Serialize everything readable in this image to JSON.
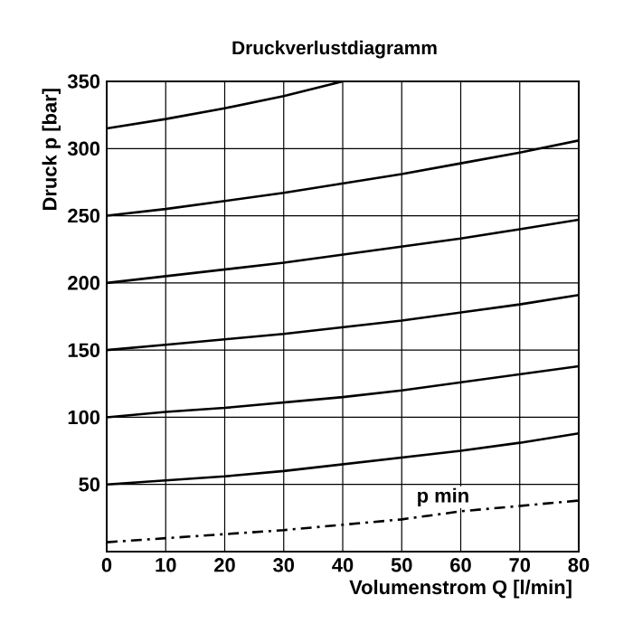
{
  "chart_data": {
    "type": "line",
    "title": "Druckverlustdiagramm",
    "xlabel": "Volumenstrom Q [l/min]",
    "ylabel": "Druck p [bar]",
    "xlim": [
      0,
      80
    ],
    "ylim": [
      0,
      350
    ],
    "xticks": [
      0,
      10,
      20,
      30,
      40,
      50,
      60,
      70,
      80
    ],
    "yticks": [
      {
        "value": 0,
        "label": null
      },
      50,
      100,
      150,
      200,
      250,
      300,
      350
    ],
    "grid": true,
    "marker": "none",
    "annotations": [
      {
        "text": "p min",
        "x": 57,
        "y": 32
      }
    ],
    "series": [
      {
        "color": "#000000",
        "line_style": "solid",
        "x": [
          0,
          10,
          20,
          30,
          40,
          50,
          60,
          70,
          80
        ],
        "values": [
          50,
          53,
          56,
          60,
          65,
          70,
          75,
          81,
          88
        ]
      },
      {
        "color": "#000000",
        "line_style": "solid",
        "x": [
          0,
          10,
          20,
          30,
          40,
          50,
          60,
          70,
          80
        ],
        "values": [
          100,
          104,
          107,
          111,
          115,
          120,
          126,
          132,
          138
        ]
      },
      {
        "color": "#000000",
        "line_style": "solid",
        "x": [
          0,
          10,
          20,
          30,
          40,
          50,
          60,
          70,
          80
        ],
        "values": [
          150,
          154,
          158,
          162,
          167,
          172,
          178,
          184,
          191
        ]
      },
      {
        "color": "#000000",
        "line_style": "solid",
        "x": [
          0,
          10,
          20,
          30,
          40,
          50,
          60,
          70,
          80
        ],
        "values": [
          200,
          205,
          210,
          215,
          221,
          227,
          233,
          240,
          247
        ]
      },
      {
        "color": "#000000",
        "line_style": "solid",
        "x": [
          0,
          10,
          20,
          30,
          40,
          50,
          60,
          70,
          80
        ],
        "values": [
          250,
          255,
          261,
          267,
          274,
          281,
          289,
          297,
          306
        ]
      },
      {
        "color": "#000000",
        "line_style": "solid",
        "x": [
          0,
          10,
          20,
          30,
          40
        ],
        "values": [
          315,
          322,
          330,
          339,
          350
        ]
      },
      {
        "color": "#000000",
        "line_style": "dashdot",
        "x": [
          0,
          10,
          20,
          30,
          40,
          50,
          60,
          70,
          80
        ],
        "values": [
          7,
          10,
          13,
          16,
          20,
          24,
          30,
          34,
          38
        ]
      }
    ]
  }
}
